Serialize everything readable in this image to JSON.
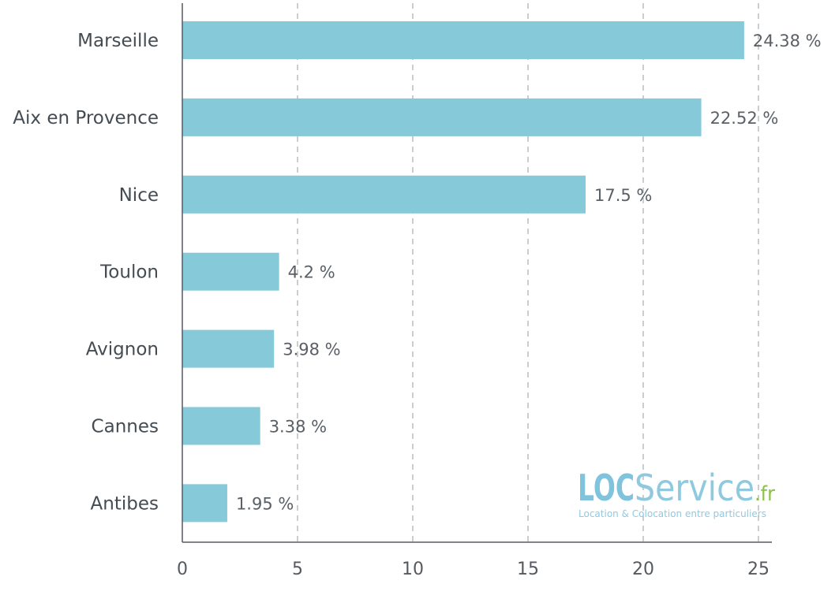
{
  "chart_data": {
    "type": "bar",
    "orientation": "horizontal",
    "categories": [
      "Marseille",
      "Aix en Provence",
      "Nice",
      "Toulon",
      "Avignon",
      "Cannes",
      "Antibes"
    ],
    "values": [
      24.38,
      22.52,
      17.5,
      4.2,
      3.98,
      3.38,
      1.95
    ],
    "value_labels": [
      "24.38 %",
      "22.52 %",
      "17.5 %",
      "4.2 %",
      "3.98 %",
      "3.38 %",
      "1.95 %"
    ],
    "xlim": [
      0,
      25
    ],
    "xticks": [
      0,
      5,
      10,
      15,
      20,
      25
    ],
    "grid": "vertical dashed",
    "bar_color": "#86c9d9",
    "title": "",
    "xlabel": "",
    "ylabel": ""
  },
  "logo": {
    "text_bold": "LOC",
    "text_light": "Service",
    "text_suffix": ".fr",
    "tagline": "Location & Colocation entre particuliers",
    "color_bold": "#7fc3dd",
    "color_light": "#8fc9e0",
    "color_suffix": "#8bc34a",
    "color_tagline": "#8fc9e0"
  }
}
